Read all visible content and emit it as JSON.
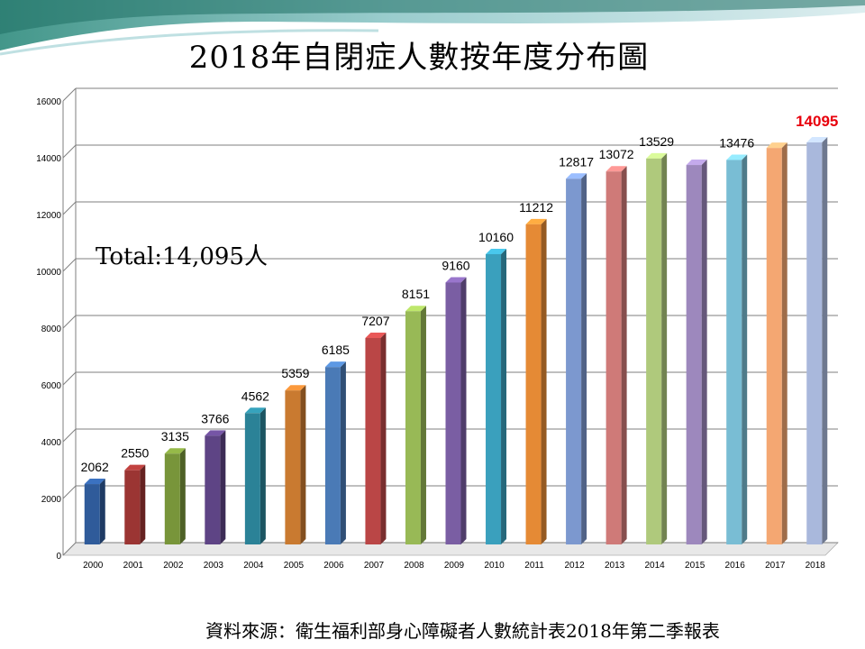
{
  "title": "2018年自閉症人數按年度分布圖",
  "total_text": "Total:14,095人",
  "source_text": "資料來源：衛生福利部身心障礙者人數統計表2018年第二季報表",
  "chart_data": {
    "type": "bar",
    "title": "2018年自閉症人數按年度分布圖",
    "xlabel": "",
    "ylabel": "",
    "ylim": [
      0,
      16000
    ],
    "yticks": [
      0,
      2000,
      4000,
      6000,
      8000,
      10000,
      12000,
      14000,
      16000
    ],
    "grid": true,
    "categories": [
      "2000",
      "2001",
      "2002",
      "2003",
      "2004",
      "2005",
      "2006",
      "2007",
      "2008",
      "2009",
      "2010",
      "2011",
      "2012",
      "2013",
      "2014",
      "2015",
      "2016",
      "2017",
      "2018"
    ],
    "values": [
      2062,
      2550,
      3135,
      3766,
      4562,
      5359,
      6185,
      7207,
      8151,
      9160,
      10160,
      11212,
      12817,
      13072,
      13529,
      null,
      13476,
      null,
      14095
    ],
    "labels": [
      "2062",
      "2550",
      "3135",
      "3766",
      "4562",
      "5359",
      "6185",
      "7207",
      "8151",
      "9160",
      "10160",
      "11212",
      "12817",
      "13072",
      "13529",
      "",
      "13476",
      "",
      "14095"
    ],
    "estimated_unlabeled_values": {
      "2015": 13300,
      "2017": 13900
    },
    "highlight": {
      "category": "2018",
      "color": "#e8000c"
    },
    "colors": [
      "#2f5b9a",
      "#9b3533",
      "#78953a",
      "#5e4485",
      "#2b8297",
      "#c97a30",
      "#4a7ab6",
      "#ba4646",
      "#98b956",
      "#7a5ea3",
      "#3aa0bd",
      "#e58a35",
      "#7c98cf",
      "#cf7a78",
      "#afc97c",
      "#9d88bd",
      "#79bdd4",
      "#f4a772",
      "#a9b8dc"
    ]
  }
}
